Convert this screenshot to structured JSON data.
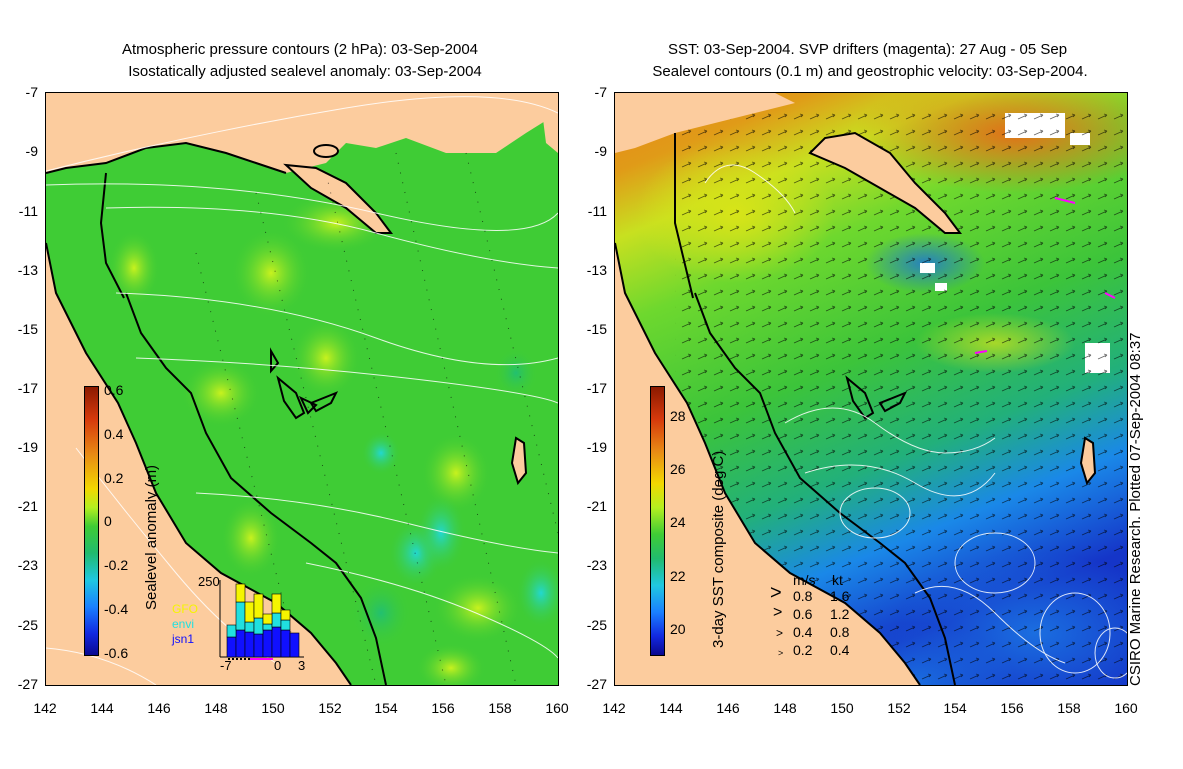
{
  "left_panel": {
    "title_line1": "Atmospheric pressure contours (2 hPa): 03-Sep-2004",
    "title_line2": "Isostatically adjusted sealevel anomaly: 03-Sep-2004",
    "colorbar_label": "Sealevel anomaly (m)",
    "colorbar_ticks": [
      "0.6",
      "0.4",
      "0.2",
      "0",
      "-0.2",
      "-0.4",
      "-0.6"
    ],
    "colorbar_range": [
      -0.6,
      0.6
    ],
    "histogram": {
      "ytick": "250",
      "xticks": [
        "-7",
        "0",
        "3"
      ],
      "legend": [
        {
          "label": "GFO",
          "color": "#f5f500"
        },
        {
          "label": "envi",
          "color": "#20e0e0"
        },
        {
          "label": "jsn1",
          "color": "#1010ff"
        }
      ]
    }
  },
  "right_panel": {
    "title_line1": "SST: 03-Sep-2004. SVP drifters (magenta): 27 Aug - 05 Sep",
    "title_line2": "Sealevel contours (0.1 m) and geostrophic velocity: 03-Sep-2004.",
    "colorbar_label": "3-day SST composite (deg C)",
    "colorbar_ticks": [
      "28",
      "26",
      "24",
      "22",
      "20"
    ],
    "colorbar_range": [
      19,
      29
    ],
    "velocity_legend": {
      "header_ms": "m/s",
      "header_kt": "kt",
      "rows": [
        {
          "ms": "0.8",
          "kt": "1.6"
        },
        {
          "ms": "0.6",
          "kt": "1.2"
        },
        {
          "ms": "0.4",
          "kt": "0.8"
        },
        {
          "ms": "0.2",
          "kt": "0.4"
        }
      ]
    },
    "credit": "CSIRO Marine Research. Plotted 07-Sep-2004 08:37"
  },
  "axes": {
    "lat_ticks": [
      "-7",
      "-9",
      "-11",
      "-13",
      "-15",
      "-17",
      "-19",
      "-21",
      "-23",
      "-25",
      "-27"
    ],
    "lon_ticks": [
      "142",
      "144",
      "146",
      "148",
      "150",
      "152",
      "154",
      "156",
      "158",
      "160"
    ],
    "lat_range": [
      -27,
      -7
    ],
    "lon_range": [
      142,
      160
    ]
  },
  "colors": {
    "land": "#fccc9e",
    "sla_base": "#3fcc35",
    "sst_warm": "#e8841a",
    "sst_cool": "#1560e0"
  }
}
